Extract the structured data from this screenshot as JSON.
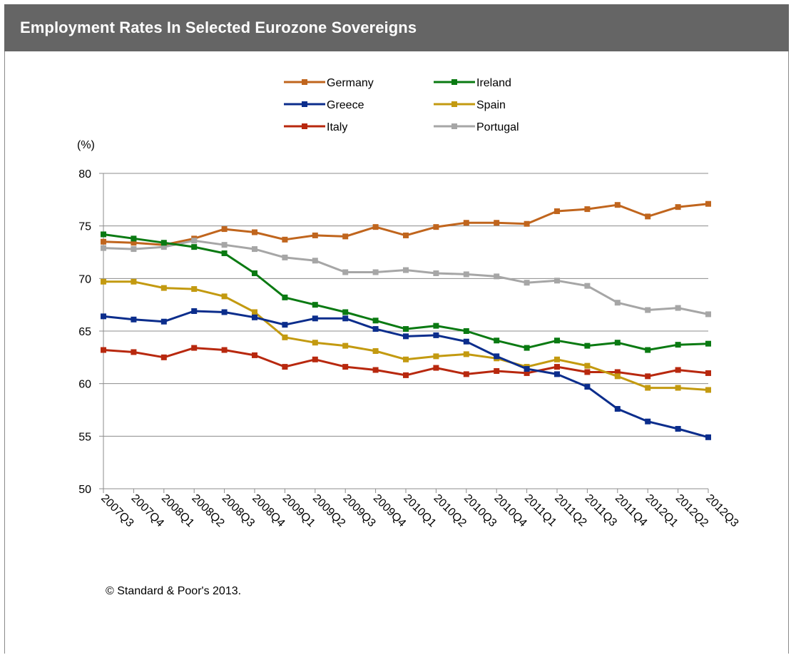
{
  "header": {
    "title": "Employment Rates In Selected Eurozone Sovereigns"
  },
  "footer": {
    "copyright": "© Standard & Poor's 2013."
  },
  "chart_data": {
    "type": "line",
    "title": "Employment Rates In Selected Eurozone Sovereigns",
    "xlabel": "",
    "ylabel": "(%)",
    "ylim": [
      50,
      80
    ],
    "yticks": [
      50,
      55,
      60,
      65,
      70,
      75,
      80
    ],
    "grid": "horizontal",
    "legend_position": "top",
    "categories": [
      "2007Q3",
      "2007Q4",
      "2008Q1",
      "2008Q2",
      "2008Q3",
      "2008Q4",
      "2009Q1",
      "2009Q2",
      "2009Q3",
      "2009Q4",
      "2010Q1",
      "2010Q2",
      "2010Q3",
      "2010Q4",
      "2011Q1",
      "2011Q2",
      "2011Q3",
      "2011Q4",
      "2012Q1",
      "2012Q2",
      "2012Q3"
    ],
    "series": [
      {
        "name": "Germany",
        "color": "#C0651D",
        "values": [
          73.5,
          73.4,
          73.2,
          73.8,
          74.7,
          74.4,
          73.7,
          74.1,
          74.0,
          74.9,
          74.1,
          74.9,
          75.3,
          75.3,
          75.2,
          76.4,
          76.6,
          77.0,
          75.9,
          76.8,
          77.1
        ]
      },
      {
        "name": "Ireland",
        "color": "#0A7A12",
        "values": [
          74.2,
          73.8,
          73.4,
          73.0,
          72.4,
          70.5,
          68.2,
          67.5,
          66.8,
          66.0,
          65.2,
          65.5,
          65.0,
          64.1,
          63.4,
          64.1,
          63.6,
          63.9,
          63.2,
          63.7,
          63.8
        ]
      },
      {
        "name": "Greece",
        "color": "#0B2D8C",
        "values": [
          66.4,
          66.1,
          65.9,
          66.9,
          66.8,
          66.3,
          65.6,
          66.2,
          66.2,
          65.2,
          64.5,
          64.6,
          64.0,
          62.6,
          61.4,
          60.9,
          59.7,
          57.6,
          56.4,
          55.7,
          54.9
        ]
      },
      {
        "name": "Spain",
        "color": "#C39A10",
        "values": [
          69.7,
          69.7,
          69.1,
          69.0,
          68.3,
          66.8,
          64.4,
          63.9,
          63.6,
          63.1,
          62.3,
          62.6,
          62.8,
          62.4,
          61.6,
          62.3,
          61.7,
          60.7,
          59.6,
          59.6,
          59.4
        ]
      },
      {
        "name": "Italy",
        "color": "#B8280E",
        "values": [
          63.2,
          63.0,
          62.5,
          63.4,
          63.2,
          62.7,
          61.6,
          62.3,
          61.6,
          61.3,
          60.8,
          61.5,
          60.9,
          61.2,
          61.0,
          61.6,
          61.1,
          61.1,
          60.7,
          61.3,
          61.0
        ]
      },
      {
        "name": "Portugal",
        "color": "#A6A6A6",
        "values": [
          72.9,
          72.8,
          73.0,
          73.6,
          73.2,
          72.8,
          72.0,
          71.7,
          70.6,
          70.6,
          70.8,
          70.5,
          70.4,
          70.2,
          69.6,
          69.8,
          69.3,
          67.7,
          67.0,
          67.2,
          66.6
        ]
      }
    ]
  }
}
